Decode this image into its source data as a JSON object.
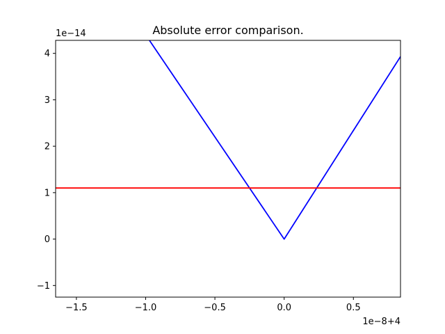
{
  "chart_data": {
    "type": "line",
    "title": "Absolute error comparison.",
    "xlabel": "",
    "ylabel": "",
    "x_offset_label": "1e−8+4",
    "y_offset_label": "1e−14",
    "xlim": [
      -1.65,
      0.84
    ],
    "ylim": [
      -1.25,
      4.28
    ],
    "x_ticks": [
      -1.5,
      -1.0,
      -0.5,
      0.0,
      0.5
    ],
    "x_tick_labels": [
      "−1.5",
      "−1.0",
      "−0.5",
      "0.0",
      "0.5"
    ],
    "y_ticks": [
      -1,
      0,
      1,
      2,
      3,
      4
    ],
    "y_tick_labels": [
      "−1",
      "0",
      "1",
      "2",
      "3",
      "4"
    ],
    "grid": false,
    "legend": "none",
    "series": [
      {
        "color": "#0000ff",
        "x": [
          -1.0,
          0.0,
          0.84
        ],
        "y": [
          4.4,
          0.0,
          3.93
        ]
      },
      {
        "color": "#ff0000",
        "x": [
          -1.65,
          0.84
        ],
        "y": [
          1.1,
          1.1
        ]
      }
    ]
  }
}
